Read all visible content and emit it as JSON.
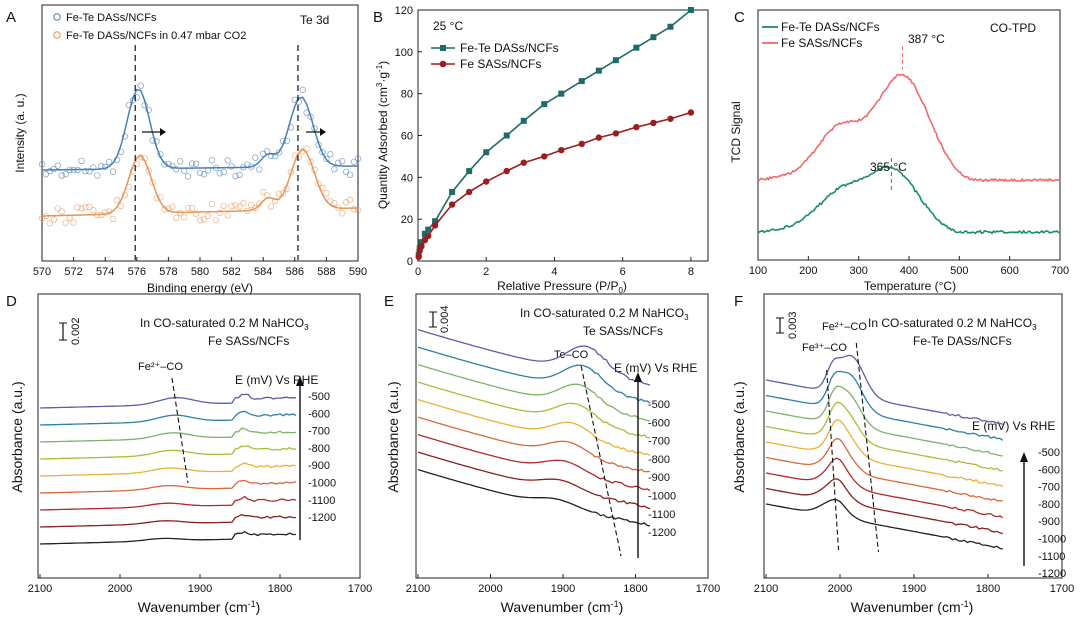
{
  "chart_data": [
    {
      "panel": "A",
      "type": "line",
      "title": "",
      "annotation": "Te 3d",
      "xlabel": "Binding energy (eV)",
      "ylabel": "Intensity (a. u.)",
      "xlim": [
        570,
        590
      ],
      "xticks": [
        "570",
        "572",
        "574",
        "576",
        "578",
        "580",
        "582",
        "584",
        "586",
        "588",
        "590"
      ],
      "vlines": [
        575.9,
        586.2
      ],
      "legend": [
        "Fe-Te DASs/NCFs",
        "Fe-Te DASs/NCFs in 0.47 mbar CO2"
      ],
      "colors": [
        "#4a7fb5",
        "#e8955a"
      ],
      "peaks": {
        "centers": [
          576.1,
          586.4
        ],
        "top": [
          7.6,
          6.9
        ],
        "bottom": [
          5.6,
          4.8
        ]
      }
    },
    {
      "panel": "B",
      "type": "line",
      "annotation": "25 °C",
      "xlabel": "Relative Pressure (P/P0)",
      "ylabel": "Quantity Adsorbed (cm3 g-1)",
      "xlim": [
        0,
        8.5
      ],
      "ylim": [
        0,
        120
      ],
      "xticks": [
        "0",
        "2",
        "4",
        "6",
        "8"
      ],
      "yticks": [
        "0",
        "20",
        "40",
        "60",
        "80",
        "100",
        "120"
      ],
      "x": [
        0.02,
        0.05,
        0.1,
        0.2,
        0.3,
        0.5,
        1,
        1.5,
        2,
        2.6,
        3.1,
        3.7,
        4.2,
        4.8,
        5.3,
        5.8,
        6.4,
        6.9,
        7.4,
        8
      ],
      "series": [
        {
          "name": "Fe-Te DASs/NCFs",
          "color": "#1f6b6b",
          "values": [
            3,
            6,
            9,
            13,
            15,
            19,
            33,
            43,
            52,
            60,
            67,
            75,
            80,
            86,
            91,
            96,
            102,
            107,
            112,
            120
          ]
        },
        {
          "name": "Fe SASs/NCFs",
          "color": "#9b1d1d",
          "values": [
            2,
            5,
            7,
            10,
            12,
            17,
            27,
            33,
            38,
            43,
            47,
            50,
            53,
            56,
            59,
            61,
            64,
            66,
            68,
            71
          ]
        }
      ]
    },
    {
      "panel": "C",
      "type": "line",
      "annotation": "CO-TPD",
      "xlabel": "Temperature (°C)",
      "ylabel": "TCD Signal",
      "xlim": [
        100,
        700
      ],
      "xticks": [
        "100",
        "200",
        "300",
        "400",
        "500",
        "600",
        "700"
      ],
      "series": [
        {
          "name": "Fe-Te DASs/NCFs",
          "color": "#1a8f5a",
          "peak_label": "365 °C",
          "peak": 365
        },
        {
          "name": "Fe SASs/NCFs",
          "color": "#f06a6a",
          "peak_label": "387 °C",
          "peak": 387
        }
      ]
    },
    {
      "panel": "D",
      "type": "line",
      "conditions": "In CO-saturated 0.2 M NaHCO3",
      "sample": "Fe SASs/NCFs",
      "scale": "0.002",
      "band": "Fe²⁺–CO",
      "xlabel": "Wavenumber (cm-1)",
      "ylabel": "Absorbance (a.u.)",
      "xlim": [
        2100,
        1700
      ],
      "xticks": [
        "2100",
        "2000",
        "1900",
        "1800",
        "1700"
      ],
      "potential_label": "E (mV) Vs RHE",
      "potentials": [
        "-500",
        "-600",
        "-700",
        "-800",
        "-900",
        "-1000",
        "-1100",
        "-1200"
      ]
    },
    {
      "panel": "E",
      "type": "line",
      "conditions": "In CO-saturated 0.2 M NaHCO3",
      "sample": "Te SASs/NCFs",
      "scale": "0.004",
      "band": "Te–CO",
      "xlabel": "Wavenumber (cm-1)",
      "ylabel": "Absorbance (a.u.)",
      "xlim": [
        2100,
        1700
      ],
      "xticks": [
        "2100",
        "2000",
        "1900",
        "1800",
        "1700"
      ],
      "potential_label": "E (mV) Vs RHE",
      "potentials": [
        "-500",
        "-600",
        "-700",
        "-800",
        "-900",
        "-1000",
        "-1100",
        "-1200"
      ]
    },
    {
      "panel": "F",
      "type": "line",
      "conditions": "In CO-saturated 0.2 M NaHCO3",
      "sample": "Fe-Te DASs/NCFs",
      "scale": "0.003",
      "band": "Fe²⁺–CO",
      "band2": "Fe³⁺–CO",
      "xlabel": "Wavenumber (cm-1)",
      "ylabel": "Absorbance (a.u.)",
      "xlim": [
        2100,
        1700
      ],
      "xticks": [
        "2100",
        "2000",
        "1900",
        "1800",
        "1700"
      ],
      "potential_label": "E (mV) Vs RHE",
      "potentials": [
        "-500",
        "-600",
        "-700",
        "-800",
        "-900",
        "-1000",
        "-1100",
        "-1200"
      ]
    }
  ],
  "spectra_colors": [
    "#5b5ea6",
    "#2f7fa5",
    "#7fb26a",
    "#a6bf3a",
    "#e8b23a",
    "#d9683a",
    "#b02a2a",
    "#8a1f1f",
    "#222222"
  ]
}
